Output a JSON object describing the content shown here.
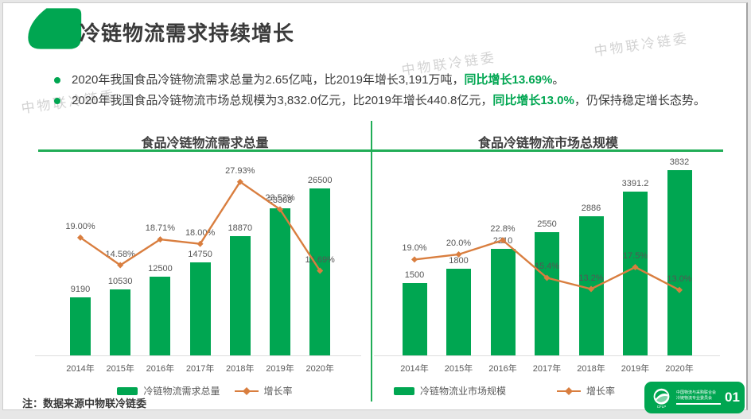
{
  "header": {
    "title": "冷链物流需求持续增长"
  },
  "watermark": {
    "text": "中物联冷链委"
  },
  "bullets": [
    {
      "pre": "2020年我国食品冷链物流需求总量为2.65亿吨，比2019年增长3,191万吨，",
      "highlight": "同比增长13.69%",
      "post": "。"
    },
    {
      "pre": "2020年我国食品冷链物流市场总规模为3,832.0亿元，比2019年增长440.8亿元，",
      "highlight": "同比增长13.0%",
      "post": "，仍保持稳定增长态势。"
    }
  ],
  "chart_data": [
    {
      "type": "bar",
      "combo": "bar+line",
      "title": "食品冷链物流需求总量",
      "categories": [
        "2014年",
        "2015年",
        "2016年",
        "2017年",
        "2018年",
        "2019年",
        "2020年"
      ],
      "series": [
        {
          "name": "冷链物流需求总量",
          "type": "bar",
          "values": [
            9190,
            10530,
            12500,
            14750,
            18870,
            23308,
            26500
          ],
          "labels": [
            "9190",
            "10530",
            "12500",
            "14750",
            "18870",
            "23308",
            "26500"
          ]
        },
        {
          "name": "增长率",
          "type": "line",
          "values": [
            19.0,
            14.58,
            18.71,
            18.0,
            27.93,
            23.52,
            13.69
          ],
          "labels": [
            "19.00%",
            "14.58%",
            "18.71%",
            "18.00%",
            "27.93%",
            "23.52%",
            "13.69%"
          ]
        }
      ],
      "ylim": [
        0,
        30000
      ],
      "y2lim_pct": [
        0,
        32
      ],
      "grid": false,
      "legend_position": "bottom"
    },
    {
      "type": "bar",
      "combo": "bar+line",
      "title": "食品冷链物流市场总规模",
      "categories": [
        "2014年",
        "2015年",
        "2016年",
        "2017年",
        "2018年",
        "2019年",
        "2020年"
      ],
      "series": [
        {
          "name": "冷链物流业市场规模",
          "type": "bar",
          "values": [
            1500,
            1800,
            2210,
            2550,
            2886,
            3391.2,
            3832
          ],
          "labels": [
            "1500",
            "1800",
            "2210",
            "2550",
            "2886",
            "3391.2",
            "3832"
          ]
        },
        {
          "name": "增长率",
          "type": "line",
          "values": [
            19.0,
            20.0,
            22.8,
            15.4,
            13.2,
            17.5,
            13.0
          ],
          "labels": [
            "19.0%",
            "20.0%",
            "22.8%",
            "15.4%",
            "13.2%",
            "17.5%",
            "13.0%"
          ]
        }
      ],
      "ylim": [
        0,
        4100
      ],
      "y2lim_pct": [
        0,
        39
      ],
      "grid": false,
      "legend_position": "bottom"
    }
  ],
  "note": "注：数据来源中物联冷链委",
  "badge": {
    "page_number": "01",
    "org_line1": "中国物流与采购联合会",
    "org_line2": "冷链物流专业委员会",
    "logo": "cflp-globe-logo"
  },
  "colors": {
    "brand_green": "#00A651",
    "line_orange": "#D97E3F",
    "highlight_green": "#00A651",
    "label_gray": "#555555"
  }
}
